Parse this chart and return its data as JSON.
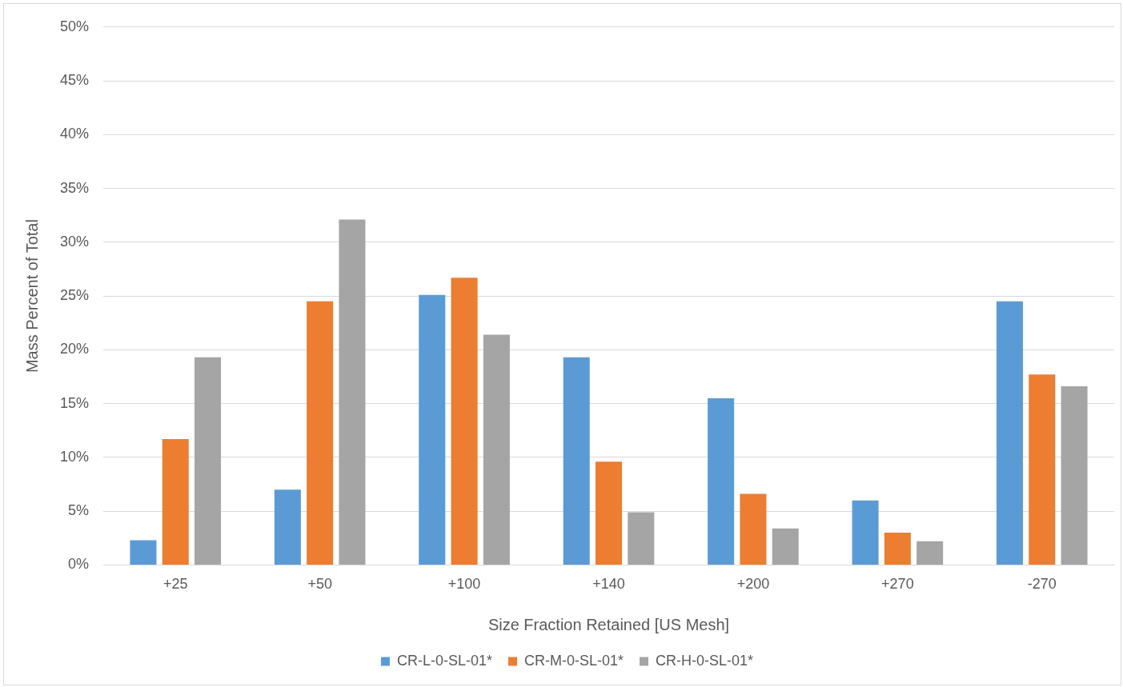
{
  "chart_data": {
    "type": "bar",
    "xlabel": "Size Fraction Retained [US Mesh]",
    "ylabel": "Mass Percent of Total",
    "categories": [
      "+25",
      "+50",
      "+100",
      "+140",
      "+200",
      "+270",
      "-270"
    ],
    "series": [
      {
        "name": "CR-L-0-SL-01*",
        "color": "#5b9bd5",
        "values": [
          2.3,
          7.0,
          25.1,
          19.3,
          15.5,
          6.0,
          24.5
        ]
      },
      {
        "name": "CR-M-0-SL-01*",
        "color": "#ed7d31",
        "values": [
          11.7,
          24.5,
          26.7,
          9.6,
          6.6,
          3.0,
          17.7
        ]
      },
      {
        "name": "CR-H-0-SL-01*",
        "color": "#a5a5a5",
        "values": [
          19.3,
          32.1,
          21.4,
          4.9,
          3.4,
          2.2,
          16.6
        ]
      }
    ],
    "ylim": [
      0,
      50
    ],
    "yticks": [
      {
        "value": 0,
        "label": "0%"
      },
      {
        "value": 5,
        "label": "5%"
      },
      {
        "value": 10,
        "label": "10%"
      },
      {
        "value": 15,
        "label": "15%"
      },
      {
        "value": 20,
        "label": "20%"
      },
      {
        "value": 25,
        "label": "25%"
      },
      {
        "value": 30,
        "label": "30%"
      },
      {
        "value": 35,
        "label": "35%"
      },
      {
        "value": 40,
        "label": "40%"
      },
      {
        "value": 45,
        "label": "45%"
      },
      {
        "value": 50,
        "label": "50%"
      }
    ],
    "grid": "y",
    "legend": "bottom"
  }
}
